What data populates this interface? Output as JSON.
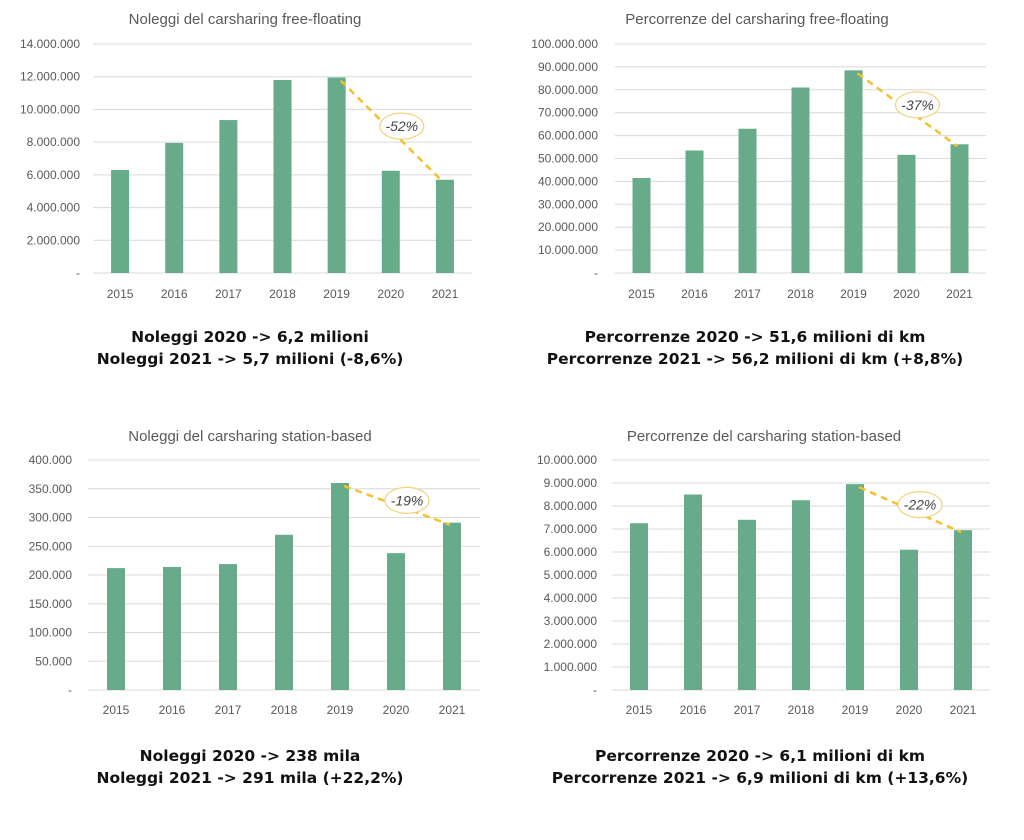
{
  "colors": {
    "bar": "#67ab8a",
    "trend": "#f2c12e",
    "grid": "#d9d9d9",
    "text": "#595959"
  },
  "chart_data": [
    {
      "type": "bar",
      "title": "Noleggi del carsharing free-floating",
      "categories": [
        "2015",
        "2016",
        "2017",
        "2018",
        "2019",
        "2020",
        "2021"
      ],
      "values": [
        6300000,
        7950000,
        9350000,
        11800000,
        11950000,
        6250000,
        5700000
      ],
      "ylim": [
        0,
        14000000
      ],
      "yticks": [
        0,
        2000000,
        4000000,
        6000000,
        8000000,
        10000000,
        12000000,
        14000000
      ],
      "ytick_labels": [
        "-",
        "2.000.000",
        "4.000.000",
        "6.000.000",
        "8.000.000",
        "10.000.000",
        "12.000.000",
        "14.000.000"
      ],
      "grid": true,
      "annotation": {
        "text": "-52%",
        "from_category": "2019",
        "to_category": "2021"
      },
      "caption": [
        "Noleggi 2020 -> 6,2 milioni",
        "Noleggi 2021 -> 5,7 milioni (-8,6%)"
      ]
    },
    {
      "type": "bar",
      "title": "Percorrenze del carsharing free-floating",
      "categories": [
        "2015",
        "2016",
        "2017",
        "2018",
        "2019",
        "2020",
        "2021"
      ],
      "values": [
        41500000,
        53500000,
        63000000,
        81000000,
        88500000,
        51600000,
        56200000
      ],
      "ylim": [
        0,
        100000000
      ],
      "yticks": [
        0,
        10000000,
        20000000,
        30000000,
        40000000,
        50000000,
        60000000,
        70000000,
        80000000,
        90000000,
        100000000
      ],
      "ytick_labels": [
        "-",
        "10.000.000",
        "20.000.000",
        "30.000.000",
        "40.000.000",
        "50.000.000",
        "60.000.000",
        "70.000.000",
        "80.000.000",
        "90.000.000",
        "100.000.000"
      ],
      "grid": true,
      "annotation": {
        "text": "-37%",
        "from_category": "2019",
        "to_category": "2021"
      },
      "caption": [
        "Percorrenze 2020 -> 51,6 milioni di km",
        "Percorrenze 2021 -> 56,2 milioni di km (+8,8%)"
      ]
    },
    {
      "type": "bar",
      "title": "Noleggi del carsharing station-based",
      "categories": [
        "2015",
        "2016",
        "2017",
        "2018",
        "2019",
        "2020",
        "2021"
      ],
      "values": [
        212000,
        214000,
        219000,
        270000,
        360000,
        238000,
        291000
      ],
      "ylim": [
        0,
        400000
      ],
      "yticks": [
        0,
        50000,
        100000,
        150000,
        200000,
        250000,
        300000,
        350000,
        400000
      ],
      "ytick_labels": [
        "-",
        "50.000",
        "100.000",
        "150.000",
        "200.000",
        "250.000",
        "300.000",
        "350.000",
        "400.000"
      ],
      "grid": true,
      "annotation": {
        "text": "-19%",
        "from_category": "2019",
        "to_category": "2021"
      },
      "caption": [
        "Noleggi 2020 -> 238 mila",
        "Noleggi 2021 -> 291 mila (+22,2%)"
      ]
    },
    {
      "type": "bar",
      "title": "Percorrenze del carsharing station-based",
      "categories": [
        "2015",
        "2016",
        "2017",
        "2018",
        "2019",
        "2020",
        "2021"
      ],
      "values": [
        7250000,
        8500000,
        7400000,
        8250000,
        8950000,
        6100000,
        6950000
      ],
      "ylim": [
        0,
        10000000
      ],
      "yticks": [
        0,
        1000000,
        2000000,
        3000000,
        4000000,
        5000000,
        6000000,
        7000000,
        8000000,
        9000000,
        10000000
      ],
      "ytick_labels": [
        "-",
        "1.000.000",
        "2.000.000",
        "3.000.000",
        "4.000.000",
        "5.000.000",
        "6.000.000",
        "7.000.000",
        "8.000.000",
        "9.000.000",
        "10.000.000"
      ],
      "grid": true,
      "annotation": {
        "text": "-22%",
        "from_category": "2019",
        "to_category": "2021"
      },
      "caption": [
        "Percorrenze 2020 -> 6,1 milioni di km",
        "Percorrenze 2021 -> 6,9 milioni di km (+13,6%)"
      ]
    }
  ]
}
